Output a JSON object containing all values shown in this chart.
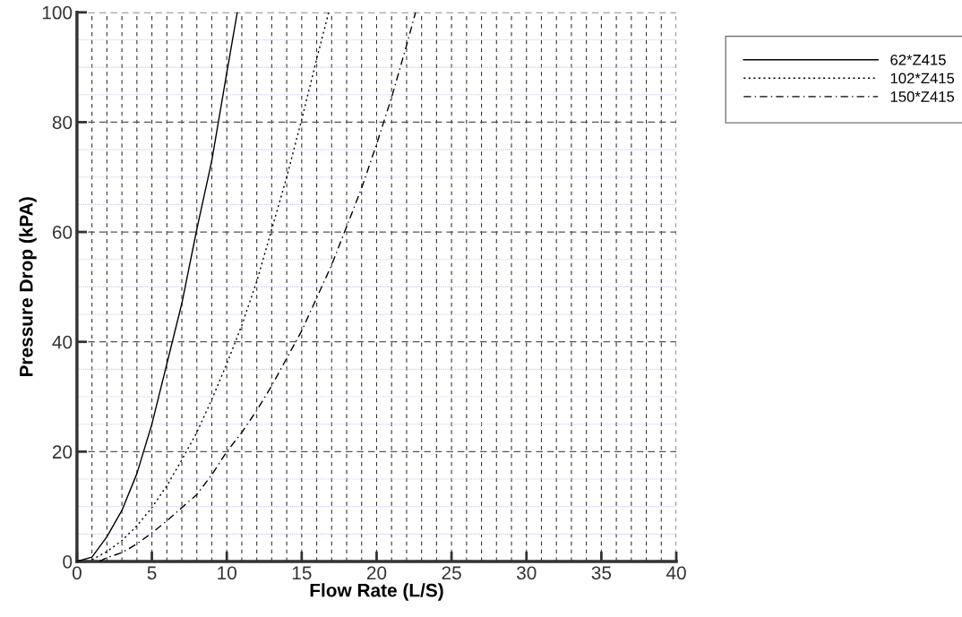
{
  "chart_data": {
    "type": "line",
    "xlabel": "Flow Rate (L/S)",
    "ylabel": "Pressure Drop (kPA)",
    "xlim": [
      0,
      40
    ],
    "ylim": [
      0,
      100
    ],
    "xticks": [
      0,
      5,
      10,
      15,
      20,
      25,
      30,
      35,
      40
    ],
    "yticks": [
      0,
      20,
      40,
      60,
      80,
      100
    ],
    "grid": true,
    "legend": "top right",
    "marker": "none",
    "series": [
      {
        "name": "62*Z415",
        "color": "#000000",
        "line_style": "solid",
        "x": [
          0,
          1,
          2,
          3,
          4,
          5,
          6,
          7,
          8,
          9,
          10,
          10.7
        ],
        "values": [
          0,
          0.8,
          4.5,
          9.3,
          16,
          25,
          36,
          47,
          60.5,
          73,
          89,
          100
        ]
      },
      {
        "name": "102*Z415",
        "color": "#000000",
        "line_style": "dotted",
        "x": [
          1,
          2,
          3,
          4,
          5,
          6,
          7,
          8,
          9,
          10,
          11,
          12,
          13,
          14,
          15,
          16,
          16.8
        ],
        "values": [
          0.3,
          1.8,
          3.8,
          6.5,
          9.8,
          13.8,
          18.5,
          23.5,
          29.5,
          36,
          43,
          51,
          60.5,
          70,
          80.5,
          91.5,
          100
        ]
      },
      {
        "name": "150*Z415",
        "color": "#000000",
        "line_style": "dashdot",
        "x": [
          1.5,
          2,
          3,
          4,
          5,
          6,
          7,
          8,
          9,
          10,
          11,
          12,
          13,
          14,
          15,
          16,
          17,
          18,
          19,
          20,
          21,
          22,
          22.6
        ],
        "values": [
          0,
          0.7,
          1.6,
          3.2,
          5.2,
          7.4,
          9.8,
          12.2,
          15.8,
          20,
          23.5,
          27.5,
          32,
          37,
          42,
          48,
          54,
          61,
          68,
          76,
          84.5,
          94,
          100
        ]
      }
    ]
  }
}
